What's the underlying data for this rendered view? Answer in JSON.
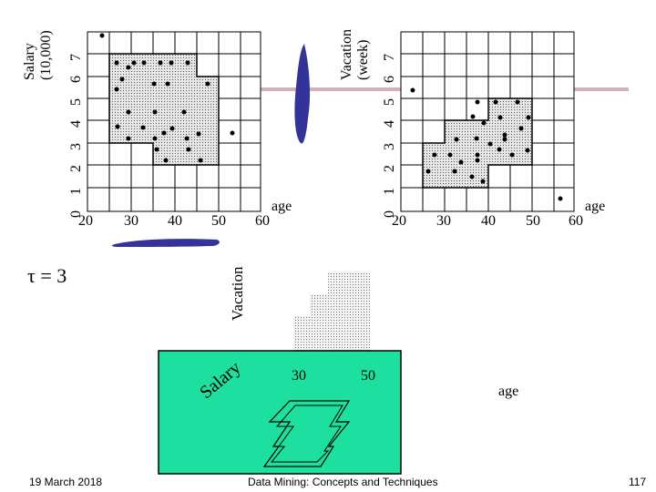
{
  "plot_left": {
    "ylabel": "Salary\n(10,000)",
    "ylabel_line1": "Salary",
    "ylabel_line2": "(10,000)",
    "y_ticks": [
      "0",
      "1",
      "2",
      "3",
      "4",
      "5",
      "6",
      "7"
    ],
    "x_ticks": [
      "20",
      "30",
      "40",
      "50",
      "60"
    ],
    "xlabel": "age"
  },
  "plot_right": {
    "ylabel_line1": "Vacation",
    "ylabel_line2": "(week)",
    "y_ticks": [
      "0",
      "1",
      "2",
      "3",
      "4",
      "5",
      "6",
      "7"
    ],
    "x_ticks": [
      "20",
      "30",
      "40",
      "50",
      "60"
    ],
    "xlabel": "age"
  },
  "tau_label": "τ = 3",
  "vacation_label": "Vacation",
  "salary_label": "Salary",
  "cube_ticks": [
    "30",
    "50"
  ],
  "cube_xlabel": "age",
  "footer": {
    "date": "19 March 2018",
    "title": "Data Mining: Concepts and Techniques",
    "page": "117"
  },
  "colors": {
    "grid": "#000000",
    "dense_fill": "#d8d8d8",
    "projection_blob": "#333399",
    "separator": "#c8a0a8",
    "cube_face": "#1de0a0"
  }
}
